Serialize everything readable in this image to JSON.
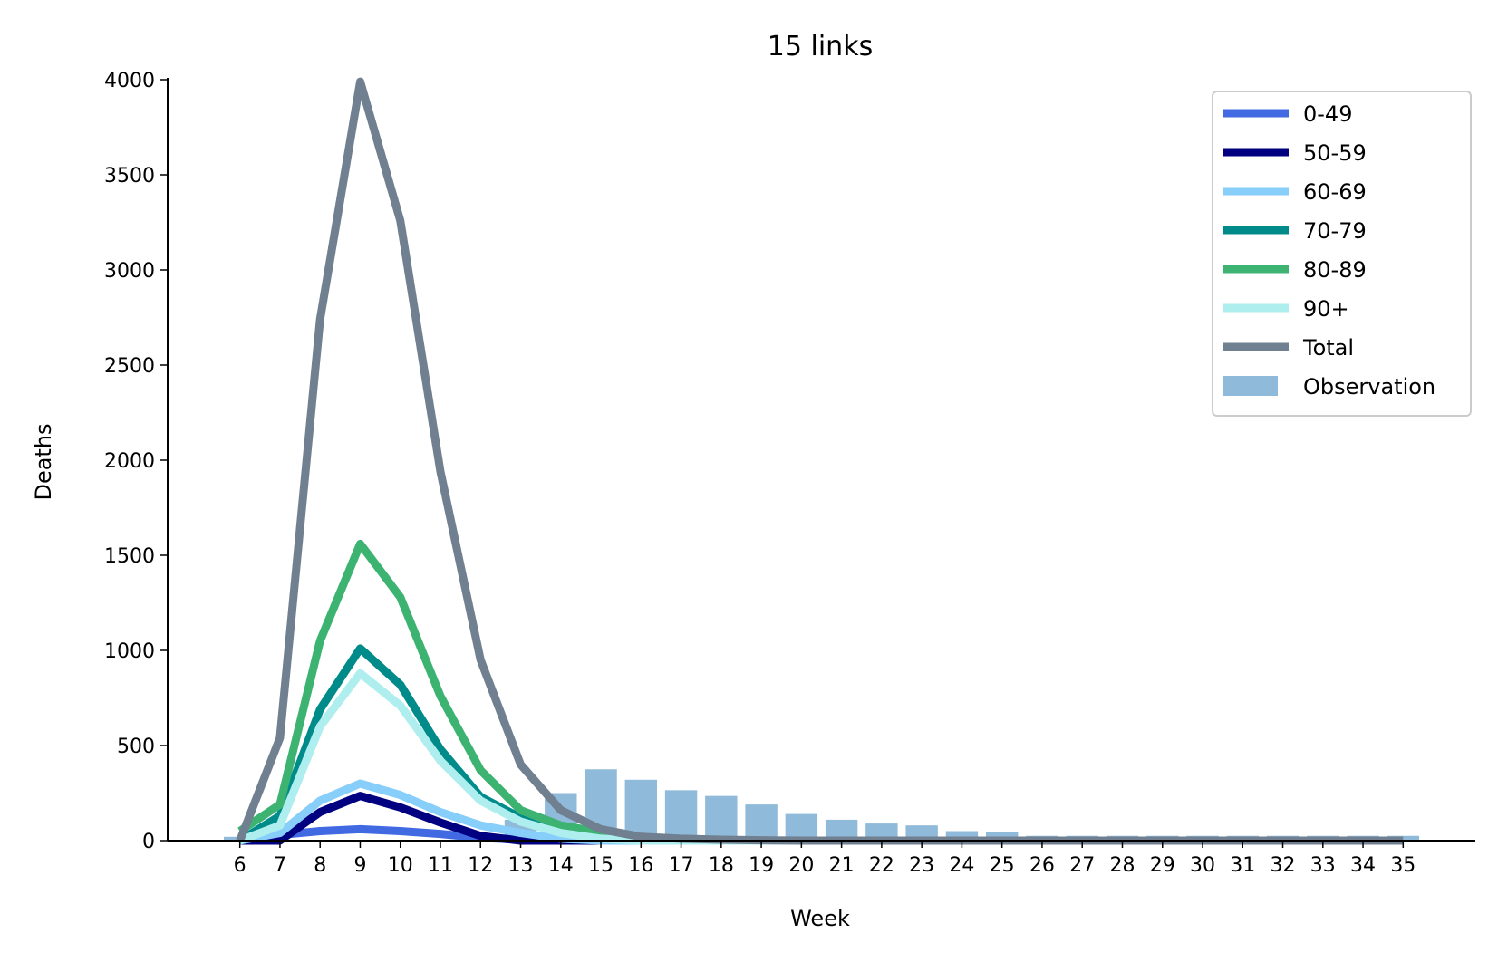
{
  "chart_data": {
    "type": "line",
    "title": "15 links",
    "xlabel": "Week",
    "ylabel": "Deaths",
    "x": [
      6,
      7,
      8,
      9,
      10,
      11,
      12,
      13,
      14,
      15,
      16,
      17,
      18,
      19,
      20,
      21,
      22,
      23,
      24,
      25,
      26,
      27,
      28,
      29,
      30,
      31,
      32,
      33,
      34,
      35
    ],
    "xticks": [
      "6",
      "7",
      "8",
      "9",
      "10",
      "11",
      "12",
      "13",
      "14",
      "15",
      "16",
      "17",
      "18",
      "19",
      "20",
      "21",
      "22",
      "23",
      "24",
      "25",
      "26",
      "27",
      "28",
      "29",
      "30",
      "31",
      "32",
      "33",
      "34",
      "35"
    ],
    "yticks": [
      "0",
      "500",
      "1000",
      "1500",
      "2000",
      "2500",
      "3000",
      "3500",
      "4000"
    ],
    "ylim": [
      0,
      4000
    ],
    "xlim": [
      4.2,
      36.8
    ],
    "grid": false,
    "legend_position": "top-right",
    "series": [
      {
        "name": "0-49",
        "color": "#4169e1",
        "values": [
          0,
          30,
          50,
          60,
          50,
          35,
          15,
          5,
          0,
          0,
          0,
          0,
          0,
          0,
          0,
          0,
          0,
          0,
          0,
          0,
          0,
          0,
          0,
          0,
          0,
          0,
          0,
          0,
          0,
          0
        ]
      },
      {
        "name": "50-59",
        "color": "#000080",
        "values": [
          0,
          0,
          150,
          235,
          175,
          95,
          25,
          0,
          0,
          0,
          0,
          0,
          0,
          0,
          0,
          0,
          0,
          0,
          0,
          0,
          0,
          0,
          0,
          0,
          0,
          0,
          0,
          0,
          0,
          0
        ]
      },
      {
        "name": "60-69",
        "color": "#87cefa",
        "values": [
          0,
          40,
          210,
          300,
          240,
          150,
          80,
          40,
          10,
          0,
          0,
          0,
          0,
          0,
          0,
          0,
          0,
          0,
          0,
          0,
          0,
          0,
          0,
          0,
          0,
          0,
          0,
          0,
          0,
          0
        ]
      },
      {
        "name": "70-79",
        "color": "#008b8b",
        "values": [
          0,
          130,
          690,
          1010,
          820,
          480,
          230,
          120,
          50,
          20,
          5,
          0,
          0,
          0,
          0,
          0,
          0,
          0,
          0,
          0,
          0,
          0,
          0,
          0,
          0,
          0,
          0,
          0,
          0,
          0
        ]
      },
      {
        "name": "80-89",
        "color": "#3cb371",
        "values": [
          50,
          190,
          1050,
          1560,
          1280,
          760,
          370,
          160,
          80,
          45,
          15,
          5,
          0,
          0,
          0,
          0,
          0,
          0,
          0,
          0,
          0,
          0,
          0,
          0,
          0,
          0,
          0,
          0,
          0,
          0
        ]
      },
      {
        "name": "90+",
        "color": "#afeeee",
        "values": [
          0,
          80,
          600,
          880,
          710,
          420,
          210,
          100,
          40,
          10,
          0,
          0,
          0,
          0,
          0,
          0,
          0,
          0,
          0,
          0,
          0,
          0,
          0,
          0,
          0,
          0,
          0,
          0,
          0,
          0
        ]
      },
      {
        "name": "Total",
        "color": "#708090",
        "values": [
          0,
          540,
          2740,
          3990,
          3260,
          1940,
          950,
          400,
          160,
          60,
          20,
          10,
          5,
          2,
          0,
          0,
          0,
          0,
          0,
          0,
          0,
          0,
          0,
          0,
          0,
          0,
          0,
          0,
          0,
          0
        ]
      }
    ],
    "bars": {
      "name": "Observation",
      "color": "#8fbad9",
      "values": [
        20,
        0,
        0,
        0,
        0,
        0,
        0,
        110,
        250,
        375,
        320,
        265,
        235,
        190,
        140,
        110,
        90,
        80,
        50,
        45,
        25,
        25,
        25,
        25,
        25,
        25,
        25,
        25,
        25,
        25
      ]
    }
  }
}
